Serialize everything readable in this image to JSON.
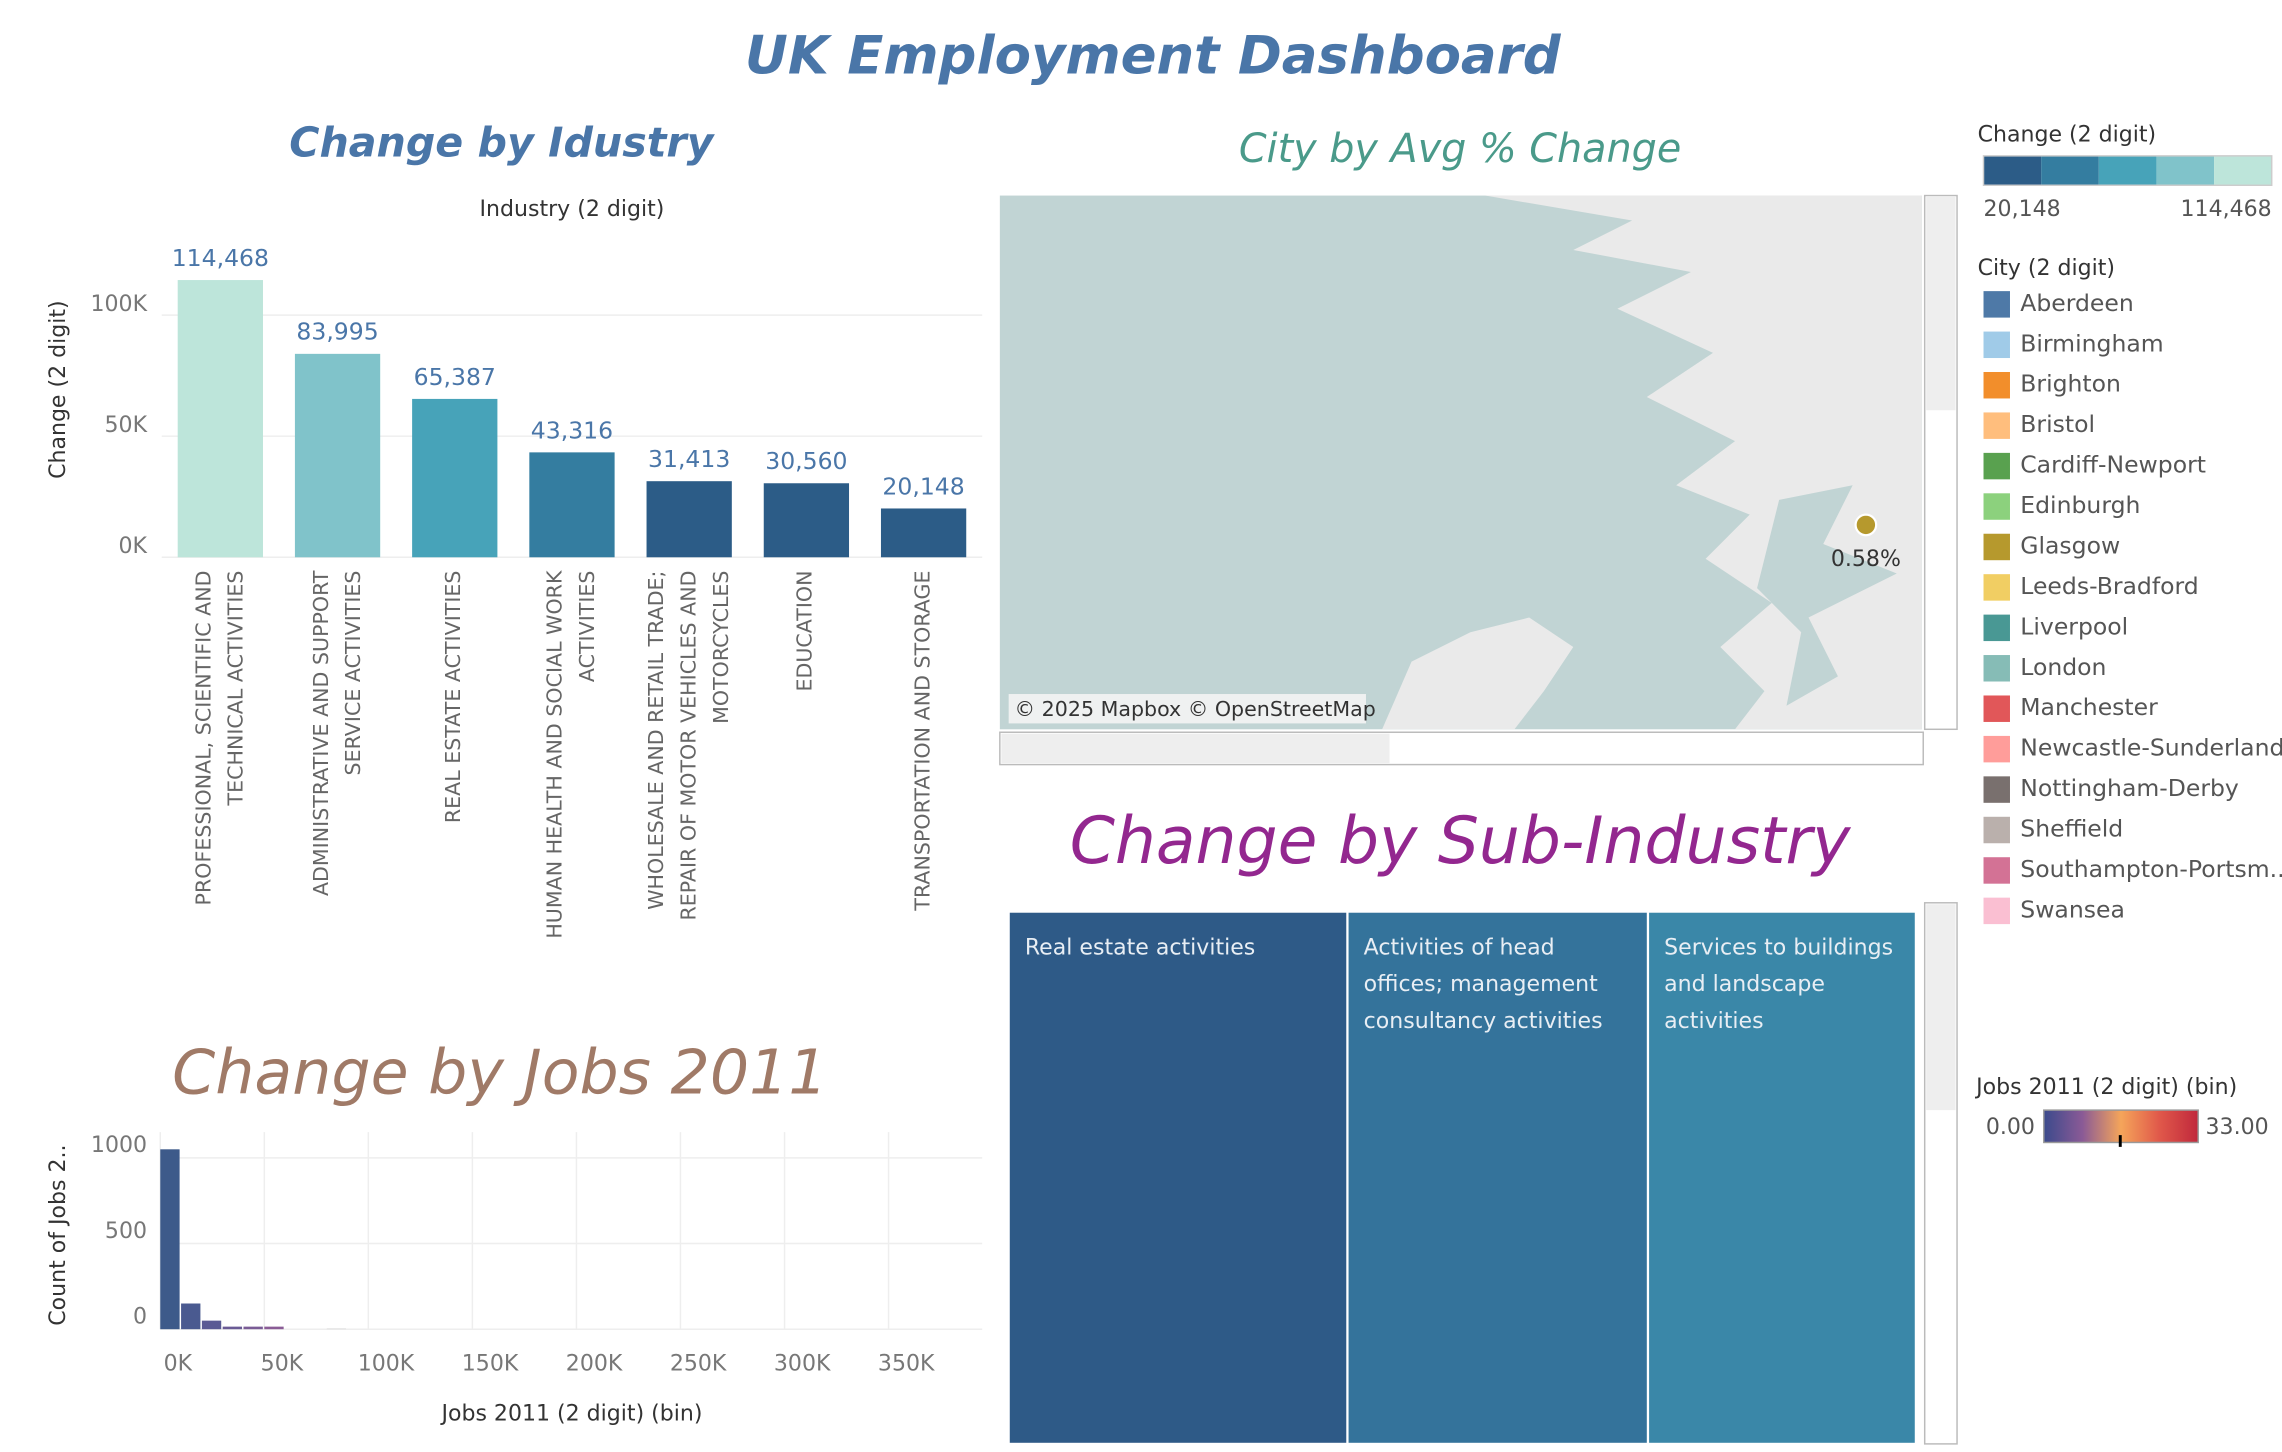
{
  "header": {
    "title": "UK Employment Dashboard"
  },
  "chart_data": [
    {
      "type": "bar",
      "title": "Change by Idustry",
      "x_label": "Industry (2 digit)",
      "y_label": "Change (2 digit)",
      "categories": [
        "PROFESSIONAL, SCIENTIFIC AND TECHNICAL ACTIVITIES",
        "ADMINISTRATIVE AND SUPPORT SERVICE ACTIVITIES",
        "REAL ESTATE ACTIVITIES",
        "HUMAN HEALTH AND SOCIAL WORK ACTIVITIES",
        "WHOLESALE AND RETAIL TRADE; REPAIR OF MOTOR VEHICLES AND MOTORCYCLES",
        "EDUCATION",
        "TRANSPORTATION AND STORAGE"
      ],
      "values": [
        114468,
        83995,
        65387,
        43316,
        31413,
        30560,
        20148
      ],
      "value_labels": [
        "114,468",
        "83,995",
        "65,387",
        "43,316",
        "31,413",
        "30,560",
        "20,148"
      ],
      "colors": [
        "#bde5da",
        "#80c3ca",
        "#47a3b9",
        "#347da0",
        "#2c5c87",
        "#2c5c87",
        "#2c5c87"
      ],
      "ylim": [
        0,
        136000
      ],
      "yticks": [
        {
          "value": 0,
          "label": "0K"
        },
        {
          "value": 50000,
          "label": "50K"
        },
        {
          "value": 100000,
          "label": "100K"
        }
      ],
      "grid": true
    },
    {
      "type": "map",
      "title": "City by Avg % Change",
      "values": [
        0.58
      ],
      "value_labels": [
        "0.58%"
      ],
      "colors": [
        "#b6992d"
      ],
      "attribution": "© 2025 Mapbox © OpenStreetMap"
    },
    {
      "type": "treemap",
      "title": "Change by Sub-Industry",
      "categories": [
        "Real estate activities",
        "Activities of head offices; management consultancy activities",
        "Services to buildings and landscape activities"
      ],
      "values": [
        65387,
        58000,
        51700
      ],
      "colors": [
        "#2e5a87",
        "#34739b",
        "#3a87a8"
      ]
    },
    {
      "type": "histogram",
      "title": "Change by Jobs 2011",
      "x_label": "Jobs 2011 (2 digit) (bin)",
      "y_label": "Count of Jobs 2..",
      "bins": [
        0,
        10000,
        20000,
        30000,
        40000,
        50000,
        60000,
        70000,
        80000,
        90000
      ],
      "values": [
        1050,
        150,
        50,
        15,
        15,
        15,
        0,
        0,
        5
      ],
      "colors": [
        "#3d5a8a",
        "#4a5a90",
        "#5a5a94",
        "#6a5b95",
        "#7a5c96",
        "#8a5c96",
        "#cccccc",
        "#cccccc",
        "#dddddd"
      ],
      "xlim": [
        0,
        395000
      ],
      "ylim": [
        0,
        1150
      ],
      "xticks": [
        {
          "value": 0,
          "label": "0K"
        },
        {
          "value": 50000,
          "label": "50K"
        },
        {
          "value": 100000,
          "label": "100K"
        },
        {
          "value": 150000,
          "label": "150K"
        },
        {
          "value": 200000,
          "label": "200K"
        },
        {
          "value": 250000,
          "label": "250K"
        },
        {
          "value": 300000,
          "label": "300K"
        },
        {
          "value": 350000,
          "label": "350K"
        }
      ],
      "yticks": [
        0,
        500,
        1000
      ],
      "grid": true
    }
  ],
  "legends": {
    "change": {
      "title": "Change (2 digit)",
      "colors": [
        "#2c5c87",
        "#347da0",
        "#47a3b9",
        "#80c3ca",
        "#bde5da"
      ],
      "labels": [
        "20,148",
        "114,468"
      ]
    },
    "city": {
      "title": "City (2 digit)",
      "items": [
        {
          "name": "Aberdeen",
          "color": "#4e79a7"
        },
        {
          "name": "Birmingham",
          "color": "#a0cbe8"
        },
        {
          "name": "Brighton",
          "color": "#f28e2b"
        },
        {
          "name": "Bristol",
          "color": "#ffbe7d"
        },
        {
          "name": "Cardiff-Newport",
          "color": "#59a14f"
        },
        {
          "name": "Edinburgh",
          "color": "#8cd17d"
        },
        {
          "name": "Glasgow",
          "color": "#b6992d"
        },
        {
          "name": "Leeds-Bradford",
          "color": "#f1ce63"
        },
        {
          "name": "Liverpool",
          "color": "#499894"
        },
        {
          "name": "London",
          "color": "#86bcb6"
        },
        {
          "name": "Manchester",
          "color": "#e15759"
        },
        {
          "name": "Newcastle-Sunderland",
          "color": "#ff9d9a"
        },
        {
          "name": "Nottingham-Derby",
          "color": "#79706e"
        },
        {
          "name": "Sheffield",
          "color": "#bab0ac"
        },
        {
          "name": "Southampton-Portsm..",
          "color": "#d37295"
        },
        {
          "name": "Swansea",
          "color": "#fabfd2"
        }
      ]
    },
    "jobs": {
      "title": "Jobs 2011 (2 digit) (bin)",
      "colors": [
        "#3b4a8c",
        "#8a5a96",
        "#f5a55a",
        "#e0584a",
        "#c0283c"
      ],
      "labels": [
        "0.00",
        "33.00"
      ]
    }
  }
}
